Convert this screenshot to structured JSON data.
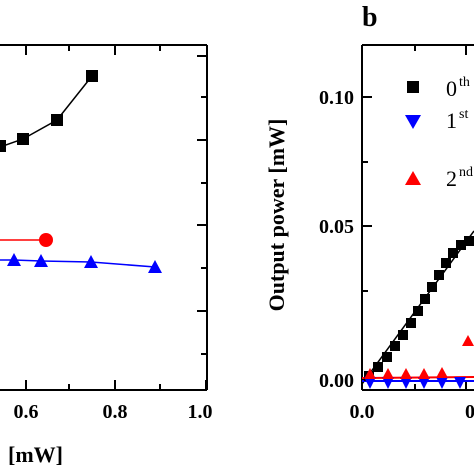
{
  "chart_data": [
    {
      "type": "line",
      "panel": "a",
      "xlabel_visible": "[mW]",
      "xlim": [
        0.0,
        1.0
      ],
      "x_ticks": [
        "0.6",
        "0.8",
        "1.0"
      ],
      "series": [
        {
          "marker": "square",
          "color": "#000000",
          "x": [
            0.58,
            0.62,
            0.67,
            0.75
          ],
          "y": [
            0.64,
            0.7,
            0.76,
            0.82
          ]
        },
        {
          "marker": "circle",
          "color": "#ff0000",
          "x": [
            0.58
          ],
          "y": [
            0.34
          ]
        },
        {
          "marker": "triangle-up",
          "color": "#0000ff",
          "x": [
            0.58,
            0.62,
            0.67,
            0.75,
            0.9
          ],
          "y": [
            0.3,
            0.3,
            0.3,
            0.3,
            0.28
          ]
        }
      ]
    },
    {
      "type": "line",
      "panel": "b",
      "ylabel": "Output power [mW]",
      "ylim": [
        -0.005,
        0.12
      ],
      "y_ticks": [
        "0.00",
        "0.05",
        "0.10"
      ],
      "x_ticks": [
        "0.0"
      ],
      "legend_position": "right",
      "legend": [
        {
          "label": "0",
          "sup": "th",
          "marker": "square",
          "color": "#000000"
        },
        {
          "label": "1",
          "sup": "st",
          "marker": "triangle-down",
          "color": "#0000ff"
        },
        {
          "label": "2",
          "sup": "nd",
          "marker": "triangle-up",
          "color": "#ff0000"
        }
      ],
      "series": [
        {
          "name": "0th",
          "marker": "square",
          "color": "#000000",
          "x": [
            0.0,
            0.01,
            0.02,
            0.03,
            0.04,
            0.05,
            0.06,
            0.07,
            0.08,
            0.09,
            0.1,
            0.11,
            0.12
          ],
          "y": [
            0.0,
            0.003,
            0.006,
            0.009,
            0.012,
            0.015,
            0.019,
            0.023,
            0.027,
            0.031,
            0.035,
            0.039,
            0.043
          ]
        },
        {
          "name": "fit",
          "marker": "none",
          "color": "#000000",
          "x": [
            0.0,
            0.13
          ],
          "y": [
            -0.002,
            0.045
          ]
        },
        {
          "name": "1st",
          "marker": "triangle-down",
          "color": "#0000ff",
          "x": [
            0.0,
            0.02,
            0.04,
            0.06,
            0.08,
            0.1,
            0.12
          ],
          "y": [
            0.0,
            0.0,
            0.0,
            0.0,
            0.0,
            0.0,
            0.0
          ]
        },
        {
          "name": "2nd",
          "marker": "triangle-up",
          "color": "#ff0000",
          "x": [
            0.0,
            0.02,
            0.04,
            0.06,
            0.08,
            0.1,
            0.12
          ],
          "y": [
            0.001,
            0.001,
            0.001,
            0.001,
            0.002,
            0.002,
            0.002
          ]
        }
      ]
    }
  ],
  "labels": {
    "panel_b": "b",
    "left_xtitle": "[mW]",
    "right_ytitle": "Output power [mW]",
    "left_x_ticks": [
      "0.6",
      "0.8",
      "1.0"
    ],
    "right_y_ticks": [
      "0.10",
      "0.05",
      "0.00"
    ],
    "right_x_tick": "0.0",
    "right_x_tick_partial": "0",
    "legend_main": [
      "0",
      "1",
      "2"
    ],
    "legend_sup": [
      "th",
      "st",
      "nd"
    ]
  }
}
